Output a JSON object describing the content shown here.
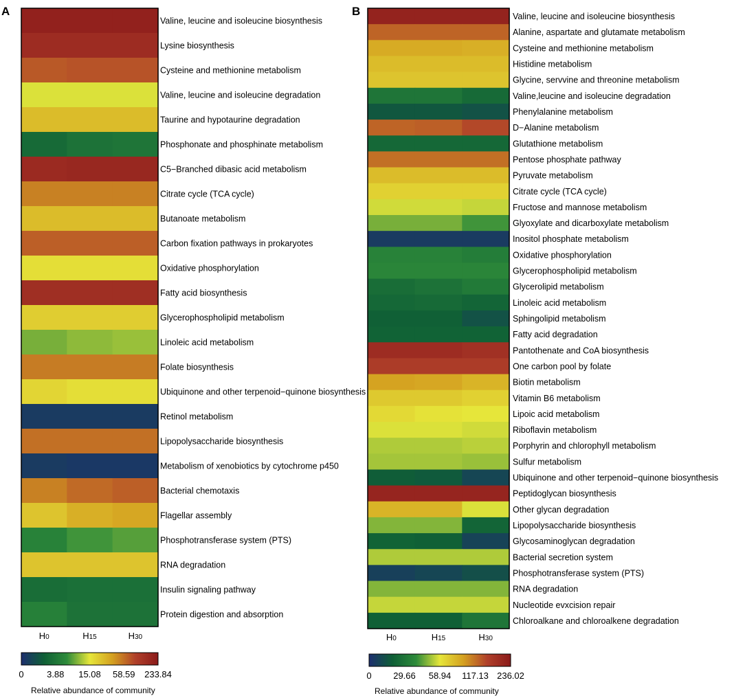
{
  "figure": {
    "colorscale": [
      "#1d2f6f",
      "#0f5f36",
      "#2e8b3a",
      "#e6e63a",
      "#d4a020",
      "#b0402a",
      "#8b1a1a"
    ],
    "legend_label": "Relative abundance of community"
  },
  "chart_data": [
    {
      "type": "heatmap",
      "panel_label": "A",
      "title": "",
      "columns": [
        "H0",
        "H15",
        "H30"
      ],
      "column_base": [
        "H",
        "H",
        "H"
      ],
      "column_sub": [
        "0",
        "15",
        "30"
      ],
      "rows": [
        "Valine, leucine and isoleucine biosynthesis",
        "Lysine biosynthesis",
        "Cysteine and methionine metabolism",
        "Valine, leucine and isoleucine degradation",
        "Taurine and hypotaurine degradation",
        "Phosphonate and phosphinate metabolism",
        "C5−Branched dibasic acid metabolism",
        "Citrate cycle (TCA cycle)",
        "Butanoate metabolism",
        "Carbon fixation pathways in prokaryotes",
        "Oxidative phosphorylation",
        "Fatty acid biosynthesis",
        "Glycerophospholipid metabolism",
        "Linoleic acid metabolism",
        "Folate biosynthesis",
        "Ubiquinone and other terpenoid−quinone biosynthesis",
        "Retinol metabolism",
        "Lipopolysaccharide biosynthesis",
        "Metabolism of xenobiotics by cytochrome p450",
        "Bacterial chemotaxis",
        "Flagellar assembly",
        "Phosphotransferase system (PTS)",
        "RNA degradation",
        "Insulin signaling pathway",
        "Protein digestion and absorption"
      ],
      "values": [
        [
          0.97,
          0.97,
          0.97
        ],
        [
          0.92,
          0.92,
          0.92
        ],
        [
          0.79,
          0.8,
          0.8
        ],
        [
          0.49,
          0.49,
          0.49
        ],
        [
          0.6,
          0.6,
          0.6
        ],
        [
          0.21,
          0.24,
          0.25
        ],
        [
          0.93,
          0.94,
          0.94
        ],
        [
          0.72,
          0.72,
          0.72
        ],
        [
          0.6,
          0.6,
          0.6
        ],
        [
          0.78,
          0.78,
          0.78
        ],
        [
          0.52,
          0.52,
          0.52
        ],
        [
          0.91,
          0.91,
          0.91
        ],
        [
          0.56,
          0.56,
          0.56
        ],
        [
          0.4,
          0.42,
          0.43
        ],
        [
          0.73,
          0.73,
          0.73
        ],
        [
          0.54,
          0.52,
          0.52
        ],
        [
          0.04,
          0.04,
          0.04
        ],
        [
          0.75,
          0.75,
          0.75
        ],
        [
          0.04,
          0.03,
          0.03
        ],
        [
          0.72,
          0.76,
          0.78
        ],
        [
          0.58,
          0.63,
          0.65
        ],
        [
          0.3,
          0.35,
          0.37
        ],
        [
          0.58,
          0.58,
          0.58
        ],
        [
          0.22,
          0.23,
          0.23
        ],
        [
          0.29,
          0.24,
          0.24
        ]
      ],
      "colorbar": {
        "ticks": [
          "0",
          "3.88",
          "15.08",
          "58.59",
          "233.84"
        ],
        "label": "Relative abundance of community"
      }
    },
    {
      "type": "heatmap",
      "panel_label": "B",
      "title": "",
      "columns": [
        "H0",
        "H15",
        "H30"
      ],
      "column_base": [
        "H",
        "H",
        "H"
      ],
      "column_sub": [
        "0",
        "15",
        "30"
      ],
      "rows": [
        "Valine, leucine and isoleucine biosynthesis",
        "Alanine, aspartate and glutamate metabolism",
        "Cysteine and methionine metabolism",
        "Histidine metabolism",
        "Glycine, servvine and threonine metabolism",
        "Valine,leucine and isoleucine degradation",
        "Phenylalanine metabolism",
        "D−Alanine metabolism",
        "Glutathione metabolism",
        "Pentose phosphate pathway",
        "Pyruvate metabolism",
        "Citrate cycle (TCA cycle)",
        "Fructose and mannose metabolism",
        "Glyoxylate and dicarboxylate metabolism",
        "Inositol phosphate metabolism",
        "Oxidative phosphorylation",
        "Glycerophospholipid metabolism",
        "Glycerolipid metabolism",
        "Linoleic acid metabolism",
        "Sphingolipid metabolism",
        "Fatty acid degradation",
        "Pantothenate and CoA biosynthesis",
        "One carbon pool by folate",
        "Biotin metabolism",
        "Vitamin B6 metabolism",
        "Lipoic acid metabolism",
        "Riboflavin metabolism",
        "Porphyrin and chlorophyll metabolism",
        "Sulfur metabolism",
        "Ubiquinone and other terpenoid−quinone biosynthesis",
        "Peptidoglycan biosynthesis",
        "Other glycan degradation",
        "Lipopolysaccharide biosynthesis",
        "Glycosaminoglycan degradation",
        "Bacterial secretion system",
        "Phosphotransferase system (PTS)",
        "RNA degradation",
        "Nucleotide evxcision repair",
        "Chloroalkane and chloroalkene degradation"
      ],
      "values": [
        [
          0.96,
          0.96,
          0.96
        ],
        [
          0.77,
          0.77,
          0.77
        ],
        [
          0.64,
          0.64,
          0.63
        ],
        [
          0.6,
          0.6,
          0.6
        ],
        [
          0.58,
          0.58,
          0.58
        ],
        [
          0.25,
          0.25,
          0.21
        ],
        [
          0.14,
          0.14,
          0.12
        ],
        [
          0.77,
          0.78,
          0.82
        ],
        [
          0.2,
          0.2,
          0.2
        ],
        [
          0.75,
          0.75,
          0.75
        ],
        [
          0.6,
          0.6,
          0.6
        ],
        [
          0.55,
          0.55,
          0.55
        ],
        [
          0.48,
          0.48,
          0.47
        ],
        [
          0.4,
          0.4,
          0.35
        ],
        [
          0.04,
          0.04,
          0.04
        ],
        [
          0.3,
          0.3,
          0.28
        ],
        [
          0.31,
          0.31,
          0.31
        ],
        [
          0.22,
          0.24,
          0.27
        ],
        [
          0.2,
          0.21,
          0.19
        ],
        [
          0.17,
          0.17,
          0.12
        ],
        [
          0.18,
          0.18,
          0.18
        ],
        [
          0.92,
          0.92,
          0.9
        ],
        [
          0.85,
          0.85,
          0.85
        ],
        [
          0.66,
          0.65,
          0.62
        ],
        [
          0.57,
          0.57,
          0.55
        ],
        [
          0.53,
          0.51,
          0.5
        ],
        [
          0.49,
          0.49,
          0.48
        ],
        [
          0.45,
          0.45,
          0.46
        ],
        [
          0.44,
          0.44,
          0.43
        ],
        [
          0.16,
          0.15,
          0.08
        ],
        [
          0.95,
          0.95,
          0.95
        ],
        [
          0.62,
          0.62,
          0.49
        ],
        [
          0.41,
          0.41,
          0.19
        ],
        [
          0.18,
          0.17,
          0.07
        ],
        [
          0.45,
          0.45,
          0.45
        ],
        [
          0.06,
          0.08,
          0.11
        ],
        [
          0.41,
          0.41,
          0.41
        ],
        [
          0.47,
          0.47,
          0.47
        ],
        [
          0.17,
          0.17,
          0.25
        ]
      ],
      "colorbar": {
        "ticks": [
          "0",
          "29.66",
          "58.94",
          "117.13",
          "236.02"
        ],
        "label": "Relative abundance of community"
      }
    }
  ]
}
